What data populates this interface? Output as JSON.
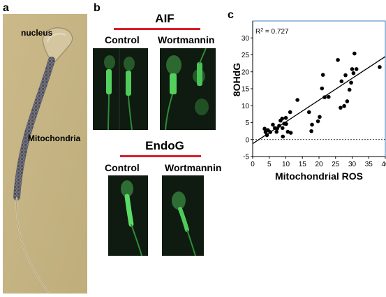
{
  "panels": {
    "a": {
      "letter": "a",
      "labels": {
        "nucleus": "nucleus",
        "mitochondria": "Mitochondria"
      }
    },
    "b": {
      "letter": "b",
      "groups": [
        {
          "title": "AIF",
          "control": "Control",
          "treatment": "Wortmannin"
        },
        {
          "title": "EndoG",
          "control": "Control",
          "treatment": "Wortmannin"
        }
      ]
    },
    "c": {
      "letter": "c"
    }
  },
  "chart_data": {
    "type": "scatter",
    "xlabel": "Mitochondrial ROS",
    "ylabel": "8OHdG",
    "xlim": [
      0,
      40
    ],
    "ylim": [
      -5,
      35
    ],
    "xticks": [
      0,
      5,
      10,
      15,
      20,
      25,
      30,
      35,
      40
    ],
    "yticks": [
      -5,
      0,
      5,
      10,
      15,
      20,
      25,
      30
    ],
    "annotation": "R² = 0.727",
    "grid": false,
    "trendline": {
      "x0": 0,
      "y0": -1.2,
      "x1": 40,
      "y1": 24.5
    },
    "reference_line": {
      "y": 0,
      "style": "dashed"
    },
    "points": [
      [
        3.6,
        3.2
      ],
      [
        3.9,
        2.2
      ],
      [
        4.3,
        1.3
      ],
      [
        4.6,
        2.8
      ],
      [
        5.3,
        2.2
      ],
      [
        6.1,
        4.4
      ],
      [
        6.7,
        3.4
      ],
      [
        7.2,
        2.3
      ],
      [
        7.4,
        3.3
      ],
      [
        8.0,
        4.1
      ],
      [
        8.4,
        5.6
      ],
      [
        8.9,
        6.2
      ],
      [
        9.0,
        3.4
      ],
      [
        9.1,
        0.9
      ],
      [
        9.5,
        4.7
      ],
      [
        10.0,
        6.4
      ],
      [
        10.1,
        4.6
      ],
      [
        10.6,
        2.3
      ],
      [
        11.3,
        8.1
      ],
      [
        11.5,
        2.0
      ],
      [
        13.5,
        11.7
      ],
      [
        17.0,
        8.1
      ],
      [
        17.7,
        2.5
      ],
      [
        17.9,
        4.4
      ],
      [
        19.7,
        5.4
      ],
      [
        20.2,
        6.7
      ],
      [
        20.9,
        15.1
      ],
      [
        21.2,
        19.1
      ],
      [
        21.7,
        12.5
      ],
      [
        22.9,
        12.6
      ],
      [
        25.7,
        23.5
      ],
      [
        26.5,
        9.4
      ],
      [
        26.8,
        17.2
      ],
      [
        27.6,
        9.9
      ],
      [
        28.0,
        19.0
      ],
      [
        28.5,
        11.3
      ],
      [
        29.2,
        14.7
      ],
      [
        29.7,
        16.8
      ],
      [
        30.0,
        20.8
      ],
      [
        30.4,
        19.6
      ],
      [
        30.7,
        25.4
      ],
      [
        31.3,
        20.8
      ],
      [
        38.3,
        21.4
      ]
    ]
  }
}
